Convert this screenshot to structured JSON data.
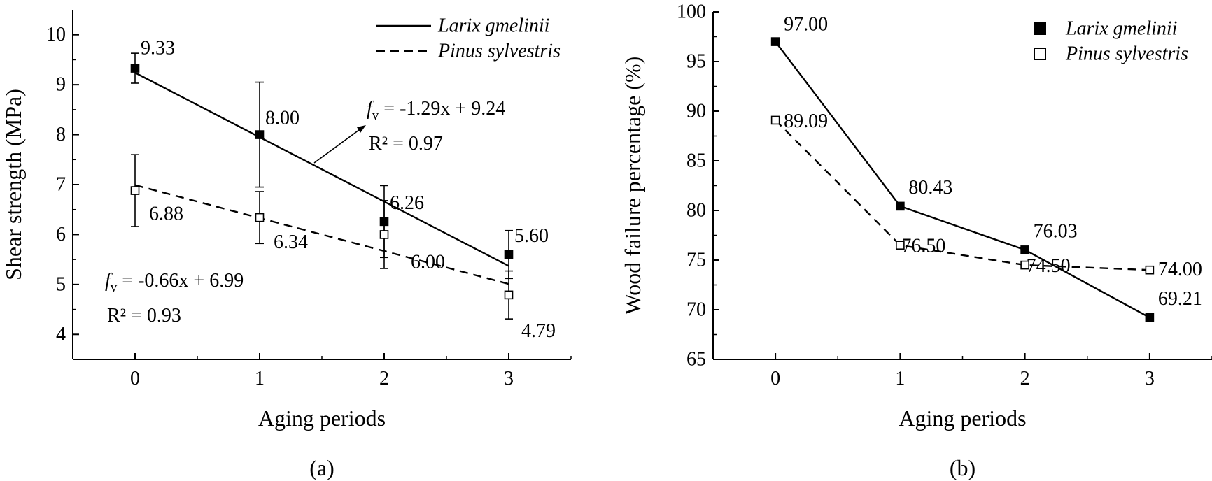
{
  "chart_data": [
    {
      "type": "line",
      "panel_label": "(a)",
      "xlabel": "Aging periods",
      "ylabel": "Shear strength (MPa)",
      "x": [
        0,
        1,
        2,
        3
      ],
      "xlim": [
        -0.5,
        3.5
      ],
      "ylim": [
        3.5,
        10.5
      ],
      "xticks": [
        "0",
        "1",
        "2",
        "3"
      ],
      "yticks": [
        "4",
        "5",
        "6",
        "7",
        "8",
        "9",
        "10"
      ],
      "legend": {
        "position": "top-right"
      },
      "series": [
        {
          "name": "Larix gmelinii",
          "marker": "filled-square",
          "values": [
            9.33,
            8.0,
            6.26,
            5.6
          ],
          "error": [
            0.3,
            1.05,
            0.72,
            0.48
          ],
          "labels": [
            "9.33",
            "8.00",
            "6.26",
            "5.60"
          ],
          "fit": {
            "slope": -1.29,
            "intercept": 9.24,
            "style": "solid"
          },
          "equation": {
            "lhs": "f",
            "sub": "v",
            "rhs": " = -1.29x + 9.24",
            "r2": "R² = 0.97"
          }
        },
        {
          "name": "Pinus sylvestris",
          "marker": "open-square",
          "values": [
            6.88,
            6.34,
            6.0,
            4.79
          ],
          "error": [
            0.72,
            0.52,
            0.68,
            0.48
          ],
          "labels": [
            "6.88",
            "6.34",
            "6.00",
            "4.79"
          ],
          "fit": {
            "slope": -0.66,
            "intercept": 6.99,
            "style": "dashed"
          },
          "equation": {
            "lhs": "f",
            "sub": "v",
            "rhs": " = -0.66x + 6.99",
            "r2": "R² = 0.93"
          }
        }
      ]
    },
    {
      "type": "line",
      "panel_label": "(b)",
      "xlabel": "Aging periods",
      "ylabel": "Wood failure percentage (%)",
      "x": [
        0,
        1,
        2,
        3
      ],
      "xlim": [
        -0.5,
        3.5
      ],
      "ylim": [
        65,
        100
      ],
      "xticks": [
        "0",
        "1",
        "2",
        "3"
      ],
      "yticks": [
        "65",
        "70",
        "75",
        "80",
        "85",
        "90",
        "95",
        "100"
      ],
      "legend": {
        "position": "top-right"
      },
      "series": [
        {
          "name": "Larix gmelinii",
          "marker": "filled-square",
          "style": "solid",
          "values": [
            97.0,
            80.43,
            76.03,
            69.21
          ],
          "labels": [
            "97.00",
            "80.43",
            "76.03",
            "69.21"
          ]
        },
        {
          "name": "Pinus sylvestris",
          "marker": "open-square",
          "style": "dashed",
          "values": [
            89.09,
            76.5,
            74.5,
            74.0
          ],
          "labels": [
            "89.09",
            "76.50",
            "74.50",
            "74.00"
          ]
        }
      ]
    }
  ]
}
